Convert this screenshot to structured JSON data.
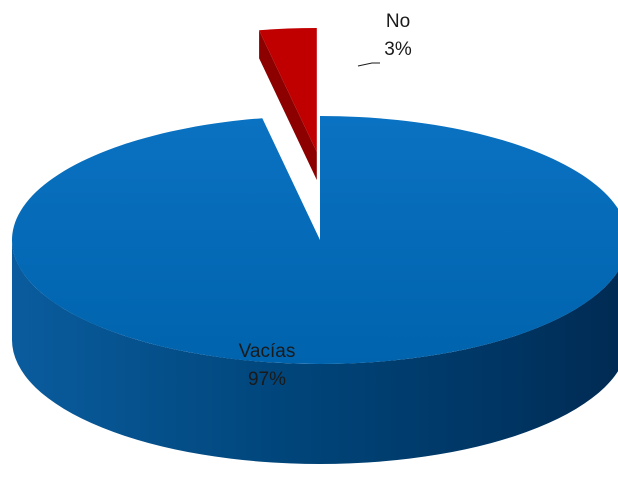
{
  "chart_data": {
    "type": "pie",
    "variant": "3d-exploded",
    "title": "",
    "categories": [
      "Vacías",
      "No"
    ],
    "values": [
      97,
      3
    ],
    "labels": {
      "Vacías": {
        "name": "Vacías",
        "percent": "97%"
      },
      "No": {
        "name": "No",
        "percent": "3%"
      }
    },
    "colors": {
      "Vacías": "#0066b3",
      "No": "#c00000"
    },
    "side_colors": {
      "Vacías": "#004b84",
      "No": "#8c0000"
    },
    "exploded": "No",
    "legend": "none",
    "start_angle": "top",
    "direction": "clockwise"
  }
}
